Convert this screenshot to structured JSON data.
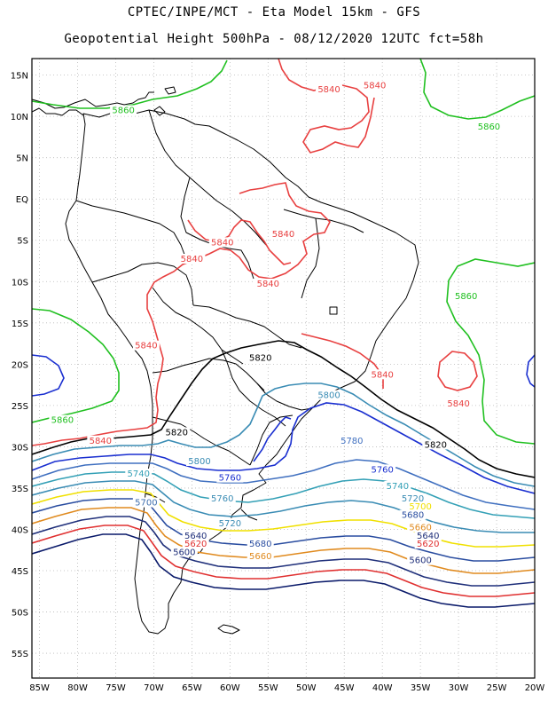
{
  "title": {
    "line1": "CPTEC/INPE/MCT -  Eta Model 15km - GFS",
    "line2": "Geopotential Height 500hPa - 08/12/2020 12UTC fct=58h"
  },
  "colors": {
    "c5560": "#0a1a6a",
    "c5600": "#1f2f7a",
    "c5620": "#e03030",
    "c5640": "#e08a1e",
    "c5660": "#f0e000",
    "c5680": "#2a4da0",
    "c5700": "#3f6fae",
    "c5720": "#3a8cb4",
    "c5740": "#33a0b6",
    "c5760": "#1a2fd0",
    "c5780": "#4070c0",
    "c5800": "#3a8cb4",
    "c5820": "#000000",
    "c5840": "#e84040",
    "c5860": "#20c020",
    "coast": "#000000"
  },
  "axes": {
    "lat_labels": [
      "15N",
      "10N",
      "5N",
      "EQ",
      "5S",
      "10S",
      "15S",
      "20S",
      "25S",
      "30S",
      "35S",
      "40S",
      "45S",
      "50S",
      "55S"
    ],
    "lon_labels": [
      "85W",
      "80W",
      "75W",
      "70W",
      "65W",
      "60W",
      "55W",
      "50W",
      "45W",
      "40W",
      "35W",
      "30W",
      "25W",
      "20W"
    ]
  },
  "map_data": {
    "type": "contour_map",
    "field": "Geopotential Height 500hPa",
    "lon_range": [
      -86,
      -20
    ],
    "lat_range": [
      17,
      -58
    ],
    "contour_labels": [
      {
        "text": "5860",
        "lon": -74,
        "lat": 10.5,
        "color": "c5860"
      },
      {
        "text": "5860",
        "lon": -26,
        "lat": 8.5,
        "color": "c5860"
      },
      {
        "text": "5860",
        "lon": -29,
        "lat": -12,
        "color": "c5860"
      },
      {
        "text": "5860",
        "lon": -82,
        "lat": -27,
        "color": "c5860"
      },
      {
        "text": "5840",
        "lon": -47,
        "lat": 13,
        "color": "c5840"
      },
      {
        "text": "5840",
        "lon": -41,
        "lat": 13.5,
        "color": "c5840"
      },
      {
        "text": "5840",
        "lon": -61,
        "lat": -5.5,
        "color": "c5840"
      },
      {
        "text": "5840",
        "lon": -53,
        "lat": -4.5,
        "color": "c5840"
      },
      {
        "text": "5840",
        "lon": -65,
        "lat": -7.5,
        "color": "c5840"
      },
      {
        "text": "5840",
        "lon": -55,
        "lat": -10.5,
        "color": "c5840"
      },
      {
        "text": "5840",
        "lon": -71,
        "lat": -18,
        "color": "c5840"
      },
      {
        "text": "5840",
        "lon": -40,
        "lat": -21.5,
        "color": "c5840"
      },
      {
        "text": "5840",
        "lon": -30,
        "lat": -25,
        "color": "c5840"
      },
      {
        "text": "5840",
        "lon": -77,
        "lat": -29.5,
        "color": "c5840"
      },
      {
        "text": "5820",
        "lon": -56,
        "lat": -19.5,
        "color": "c5820"
      },
      {
        "text": "5820",
        "lon": -67,
        "lat": -28.5,
        "color": "c5820"
      },
      {
        "text": "5820",
        "lon": -33,
        "lat": -30,
        "color": "c5820"
      },
      {
        "text": "5800",
        "lon": -47,
        "lat": -24,
        "color": "c5800"
      },
      {
        "text": "5800",
        "lon": -64,
        "lat": -32,
        "color": "c5800"
      },
      {
        "text": "5780",
        "lon": -44,
        "lat": -29.5,
        "color": "c5780"
      },
      {
        "text": "5760",
        "lon": -60,
        "lat": -34,
        "color": "c5760"
      },
      {
        "text": "5760",
        "lon": -40,
        "lat": -33,
        "color": "c5760"
      },
      {
        "text": "5760",
        "lon": -61,
        "lat": -36.5,
        "color": "c5720"
      },
      {
        "text": "5740",
        "lon": -72,
        "lat": -33.5,
        "color": "c5740"
      },
      {
        "text": "5740",
        "lon": -38,
        "lat": -35,
        "color": "c5740"
      },
      {
        "text": "5720",
        "lon": -36,
        "lat": -36.5,
        "color": "c5720"
      },
      {
        "text": "5720",
        "lon": -60,
        "lat": -39.5,
        "color": "c5720"
      },
      {
        "text": "5700",
        "lon": -71,
        "lat": -37,
        "color": "c5700"
      },
      {
        "text": "5700",
        "lon": -35,
        "lat": -37.5,
        "color": "c5660"
      },
      {
        "text": "5680",
        "lon": -56,
        "lat": -42,
        "color": "c5680"
      },
      {
        "text": "5680",
        "lon": -36,
        "lat": -38.5,
        "color": "c5680"
      },
      {
        "text": "5660",
        "lon": -56,
        "lat": -43.5,
        "color": "c5640"
      },
      {
        "text": "5660",
        "lon": -35,
        "lat": -40,
        "color": "c5640"
      },
      {
        "text": "5640",
        "lon": -64.5,
        "lat": -41,
        "color": "c5600"
      },
      {
        "text": "5640",
        "lon": -34,
        "lat": -41,
        "color": "c5600"
      },
      {
        "text": "5620",
        "lon": -64.5,
        "lat": -42,
        "color": "c5620"
      },
      {
        "text": "5620",
        "lon": -34,
        "lat": -42,
        "color": "c5620"
      },
      {
        "text": "5600",
        "lon": -66,
        "lat": -43,
        "color": "c5600"
      },
      {
        "text": "5600",
        "lon": -35,
        "lat": -44,
        "color": "c5600"
      }
    ]
  }
}
